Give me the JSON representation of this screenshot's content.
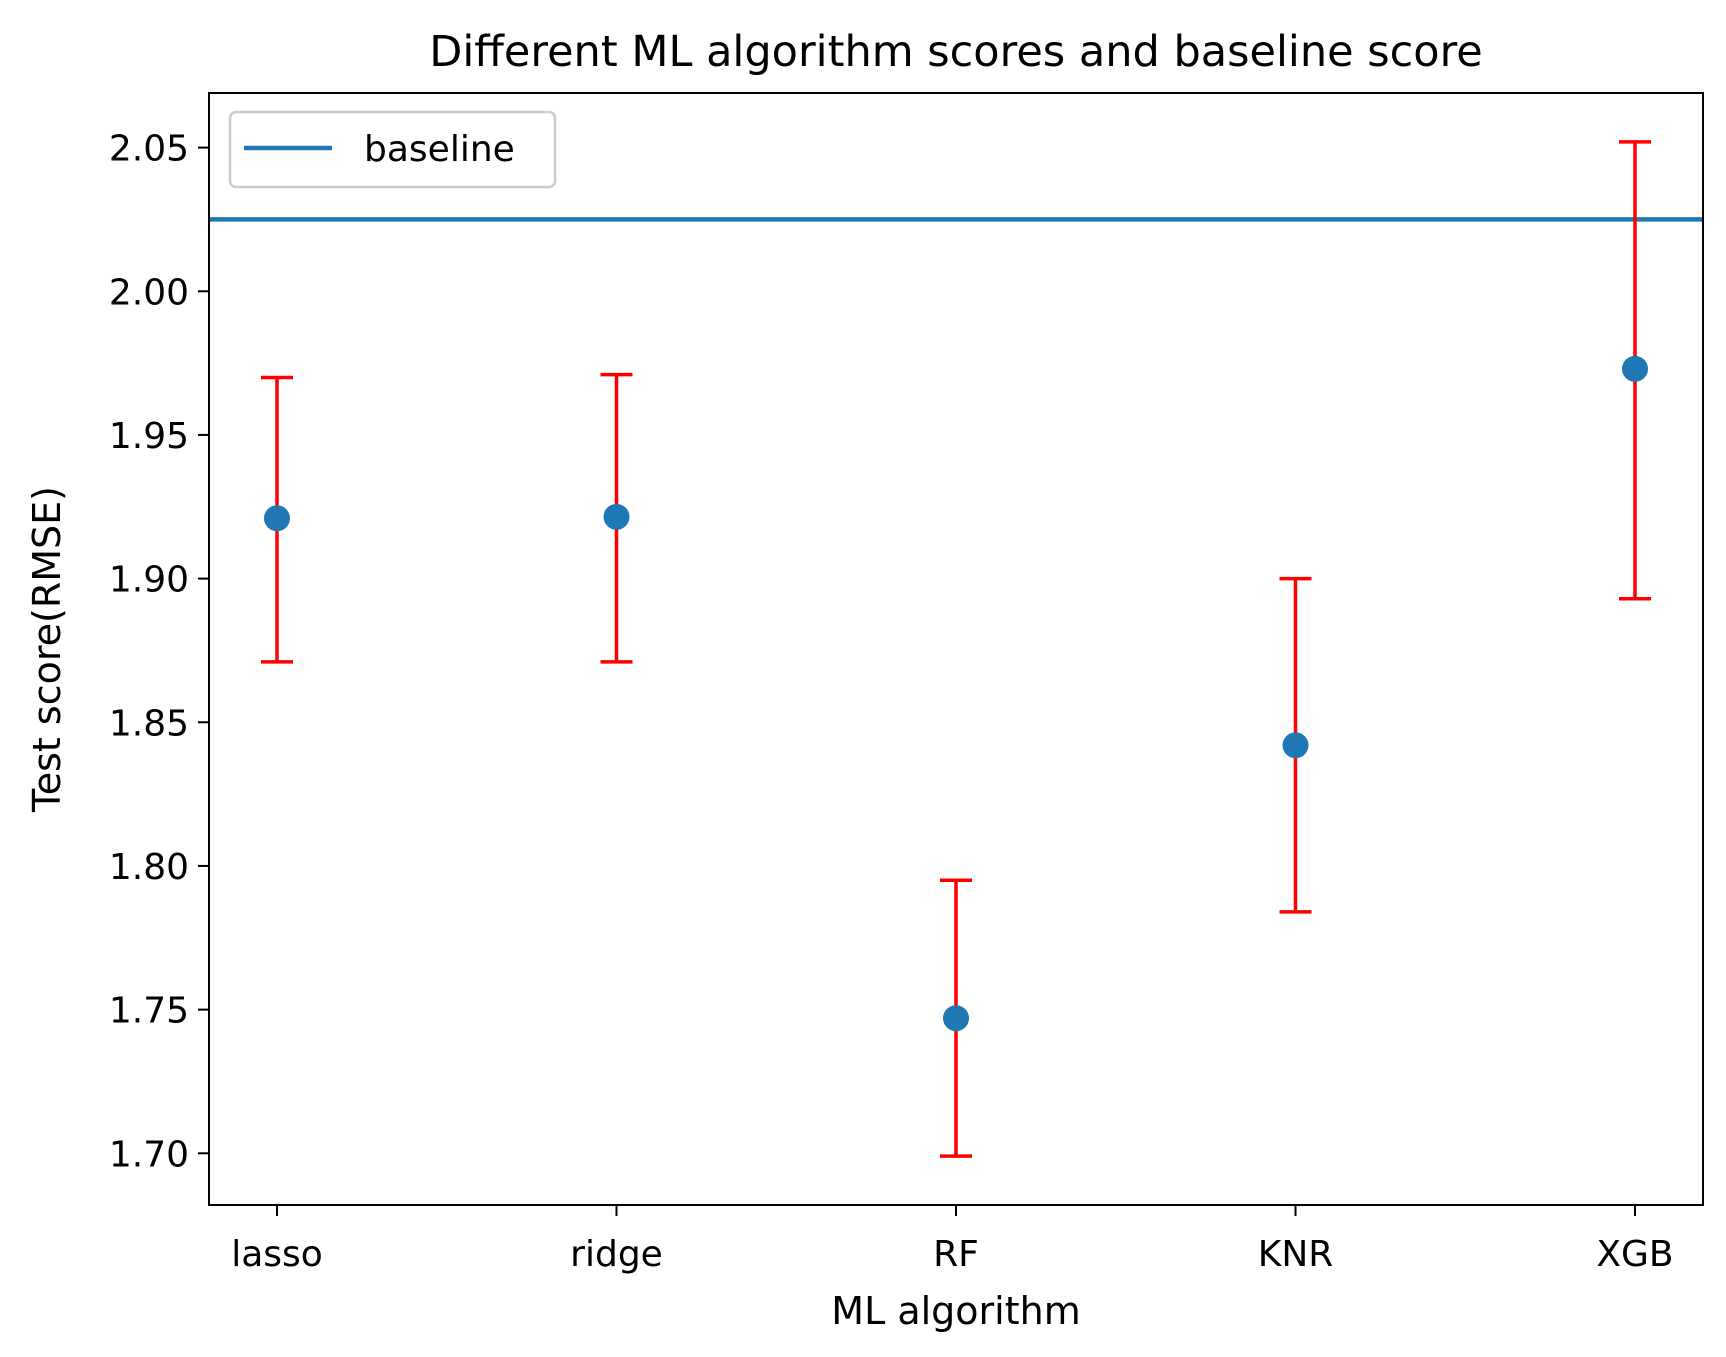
{
  "chart_data": {
    "type": "scatter",
    "title": "Different ML algorithm scores and baseline score",
    "xlabel": "ML algorithm",
    "ylabel": "Test score(RMSE)",
    "categories": [
      "lasso",
      "ridge",
      "RF",
      "KNR",
      "XGB"
    ],
    "series": [
      {
        "values": [
          1.921,
          1.9215,
          1.747,
          1.842,
          1.973
        ],
        "error_lower": [
          1.871,
          1.871,
          1.699,
          1.784,
          1.893
        ],
        "error_upper": [
          1.97,
          1.971,
          1.795,
          1.9,
          2.052
        ],
        "color": "#1f77b4",
        "error_color": "#ff0000"
      }
    ],
    "baseline": {
      "name": "baseline",
      "value": 2.025,
      "color": "#1f77b4"
    },
    "ylim": [
      1.682,
      2.069
    ],
    "yticks": [
      "1.70",
      "1.75",
      "1.80",
      "1.85",
      "1.90",
      "1.95",
      "2.00",
      "2.05"
    ],
    "grid": false,
    "legend_position": "top-left"
  }
}
